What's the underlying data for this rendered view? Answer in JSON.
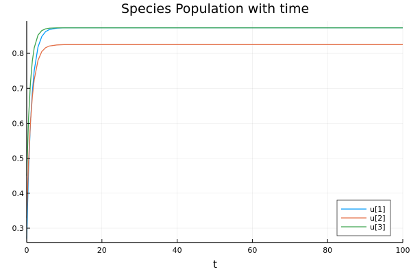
{
  "chart_data": {
    "type": "line",
    "title": "Species Population with time",
    "xlabel": "t",
    "ylabel": "",
    "xlim": [
      0,
      100
    ],
    "ylim": [
      0.259,
      0.892
    ],
    "xticks": [
      0,
      20,
      40,
      60,
      80,
      100
    ],
    "yticks": [
      0.3,
      0.4,
      0.5,
      0.6,
      0.7,
      0.8
    ],
    "xtick_labels": [
      "0",
      "20",
      "40",
      "60",
      "80",
      "100"
    ],
    "ytick_labels": [
      "0.3",
      "0.4",
      "0.5",
      "0.6",
      "0.7",
      "0.8"
    ],
    "grid": true,
    "legend_position": "bottom-right",
    "x": [
      0,
      0.5,
      1,
      1.5,
      2,
      3,
      4,
      5,
      6,
      8,
      10,
      15,
      20,
      40,
      60,
      80,
      100
    ],
    "series": [
      {
        "name": "u[1]",
        "color": "#009AFA",
        "values": [
          0.27,
          0.469,
          0.602,
          0.691,
          0.751,
          0.818,
          0.848,
          0.862,
          0.868,
          0.872,
          0.873,
          0.873,
          0.873,
          0.873,
          0.873,
          0.873,
          0.873
        ]
      },
      {
        "name": "u[2]",
        "color": "#E36F47",
        "values": [
          0.33,
          0.493,
          0.603,
          0.676,
          0.725,
          0.78,
          0.805,
          0.816,
          0.821,
          0.824,
          0.825,
          0.825,
          0.825,
          0.825,
          0.825,
          0.825,
          0.825
        ]
      },
      {
        "name": "u[3]",
        "color": "#3EA44E",
        "values": [
          0.45,
          0.616,
          0.717,
          0.779,
          0.816,
          0.852,
          0.865,
          0.87,
          0.872,
          0.873,
          0.873,
          0.873,
          0.873,
          0.873,
          0.873,
          0.873,
          0.873
        ]
      }
    ]
  }
}
